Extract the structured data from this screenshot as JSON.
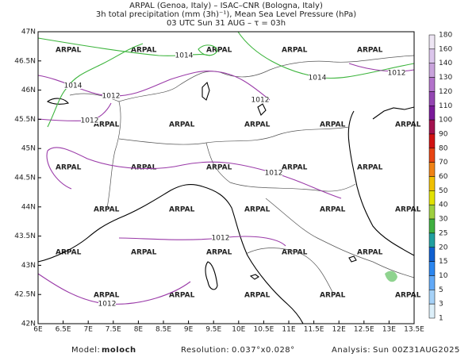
{
  "header": {
    "lines": [
      "ARPAL (Genoa, Italy)  –  ISAC–CNR (Bologna, Italy)",
      "3h total precipitation (mm (3h)⁻¹), Mean Sea Level Pressure (hPa)",
      "03 UTC Sun 31 AUG  –  τ = 03h"
    ]
  },
  "map": {
    "lat_labels": [
      "47N",
      "46.5N",
      "46N",
      "45.5N",
      "45N",
      "44.5N",
      "44N",
      "43.5N",
      "43N",
      "42.5N",
      "42N"
    ],
    "lon_labels": [
      "6E",
      "6.5E",
      "7E",
      "7.5E",
      "8E",
      "8.5E",
      "9E",
      "9.5E",
      "10E",
      "10.5E",
      "11E",
      "11.5E",
      "12E",
      "12.5E",
      "13E",
      "13.5E"
    ],
    "contour_labels": [
      "1014",
      "1014",
      "1014",
      "1012",
      "1012",
      "1012",
      "1012",
      "1012",
      "1012",
      "1012"
    ],
    "watermark": "ARPAL"
  },
  "colorbar": {
    "levels": [
      180,
      160,
      140,
      130,
      120,
      110,
      100,
      90,
      80,
      70,
      60,
      50,
      40,
      30,
      25,
      20,
      15,
      10,
      5,
      3,
      1
    ],
    "colors": [
      "#eee6f4",
      "#dcc6ec",
      "#c9a3dc",
      "#b373cb",
      "#9446b2",
      "#7a1a9a",
      "#a3124f",
      "#d11212",
      "#e84412",
      "#f08214",
      "#f0c000",
      "#e2e200",
      "#9fd040",
      "#3fb040",
      "#20a0a0",
      "#1060d0",
      "#2a86f0",
      "#62aaf8",
      "#a6d2f8",
      "#ddf0fa"
    ]
  },
  "footer": {
    "model_label": "Model:",
    "model": "moloch",
    "resolution_label": "Resolution:",
    "resolution": "0.037°x0.028°",
    "analysis_label": "Analysis:",
    "analysis": "Sun 00Z31AUG2025"
  }
}
